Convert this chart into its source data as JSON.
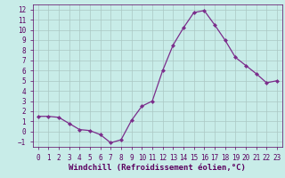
{
  "x": [
    0,
    1,
    2,
    3,
    4,
    5,
    6,
    7,
    8,
    9,
    10,
    11,
    12,
    13,
    14,
    15,
    16,
    17,
    18,
    19,
    20,
    21,
    22,
    23
  ],
  "y": [
    1.5,
    1.5,
    1.4,
    0.8,
    0.2,
    0.1,
    -0.3,
    -1.1,
    -0.8,
    1.1,
    2.5,
    3.0,
    6.0,
    8.5,
    10.2,
    11.7,
    11.9,
    10.5,
    9.0,
    7.3,
    6.5,
    5.7,
    4.8,
    5.0
  ],
  "line_color": "#7b2d8b",
  "marker": "D",
  "marker_size": 2.0,
  "background_color": "#c8ece8",
  "grid_color": "#aac8c4",
  "xlabel": "Windchill (Refroidissement éolien,°C)",
  "xlabel_color": "#5b0060",
  "tick_color": "#5b0060",
  "xlim": [
    -0.5,
    23.5
  ],
  "ylim": [
    -1.5,
    12.5
  ],
  "yticks": [
    -1,
    0,
    1,
    2,
    3,
    4,
    5,
    6,
    7,
    8,
    9,
    10,
    11,
    12
  ],
  "xticks": [
    0,
    1,
    2,
    3,
    4,
    5,
    6,
    7,
    8,
    9,
    10,
    11,
    12,
    13,
    14,
    15,
    16,
    17,
    18,
    19,
    20,
    21,
    22,
    23
  ],
  "tick_fontsize": 5.5,
  "xlabel_fontsize": 6.5,
  "linewidth": 0.9
}
